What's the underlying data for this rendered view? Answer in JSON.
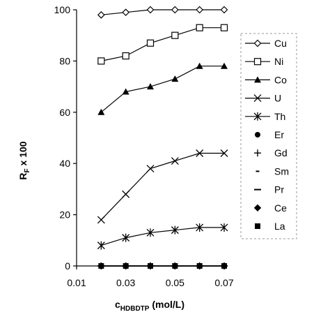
{
  "chart_data": {
    "type": "line",
    "x": [
      0.02,
      0.03,
      0.04,
      0.05,
      0.06,
      0.07
    ],
    "xlim": [
      0.01,
      0.07
    ],
    "ylim": [
      0,
      100
    ],
    "x_ticks": [
      "0.01",
      "0.03",
      "0.05",
      "0.07"
    ],
    "y_ticks": [
      "0",
      "20",
      "40",
      "60",
      "80",
      "100"
    ],
    "ylabel_main": "R",
    "ylabel_sub": "F",
    "ylabel_rest": " x 100",
    "xlabel_main": "c",
    "xlabel_sub": "HDBDTP",
    "xlabel_rest": " (mol/L)",
    "grid": false,
    "legend_position": "right",
    "series": [
      {
        "name": "Cu",
        "marker": "diamond-open",
        "values": [
          98,
          99,
          100,
          100,
          100,
          100
        ]
      },
      {
        "name": "Ni",
        "marker": "square-open",
        "values": [
          80,
          82,
          87,
          90,
          93,
          93
        ]
      },
      {
        "name": "Co",
        "marker": "triangle-filled",
        "values": [
          60,
          68,
          70,
          73,
          78,
          78
        ]
      },
      {
        "name": "U",
        "marker": "x",
        "values": [
          18,
          28,
          38,
          41,
          44,
          44
        ]
      },
      {
        "name": "Th",
        "marker": "star",
        "values": [
          8,
          11,
          13,
          14,
          15,
          15
        ]
      },
      {
        "name": "Er",
        "marker": "circle-filled",
        "values": [
          0,
          0,
          0,
          0,
          0,
          0
        ]
      },
      {
        "name": "Gd",
        "marker": "plus",
        "values": [
          0,
          0,
          0,
          0,
          0,
          0
        ]
      },
      {
        "name": "Sm",
        "marker": "dash-short",
        "values": [
          0,
          0,
          0,
          0,
          0,
          0
        ]
      },
      {
        "name": "Pr",
        "marker": "dash-long",
        "values": [
          0,
          0,
          0,
          0,
          0,
          0
        ]
      },
      {
        "name": "Ce",
        "marker": "diamond-filled",
        "values": [
          0,
          0,
          0,
          0,
          0,
          0
        ]
      },
      {
        "name": "La",
        "marker": "square-filled",
        "values": [
          0,
          0,
          0,
          0,
          0,
          0
        ]
      }
    ]
  }
}
